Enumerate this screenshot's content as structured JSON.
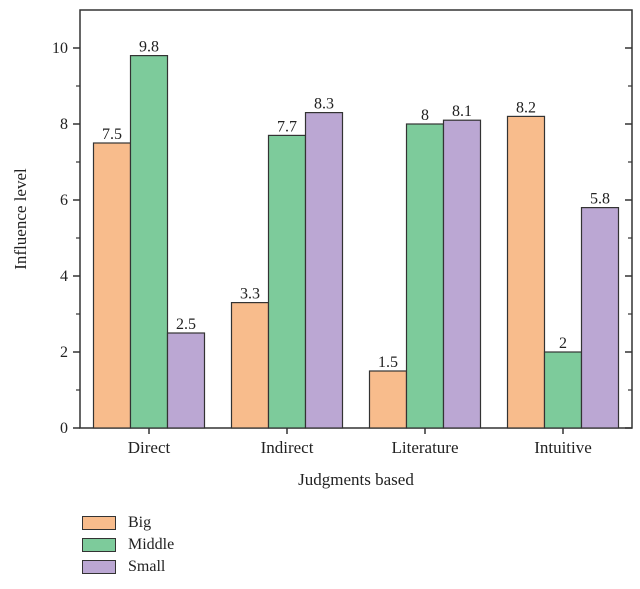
{
  "chart_data": {
    "type": "bar",
    "title": "",
    "xlabel": "Judgments based",
    "ylabel": "Influence level",
    "ylim": [
      0,
      11
    ],
    "yticks": [
      0,
      2,
      4,
      6,
      8,
      10
    ],
    "categories": [
      "Direct",
      "Indirect",
      "Literature",
      "Intuitive"
    ],
    "series": [
      {
        "name": "Big",
        "values": [
          7.5,
          3.3,
          1.5,
          8.2
        ],
        "labels": [
          "7.5",
          "3.3",
          "1.5",
          "8.2"
        ],
        "color": "#f8bc8c"
      },
      {
        "name": "Middle",
        "values": [
          9.8,
          7.7,
          8,
          2
        ],
        "labels": [
          "9.8",
          "7.7",
          "8",
          "2"
        ],
        "color": "#7dcb9b"
      },
      {
        "name": "Small",
        "values": [
          2.5,
          8.3,
          8.1,
          5.8
        ],
        "labels": [
          "2.5",
          "8.3",
          "8.1",
          "5.8"
        ],
        "color": "#bba7d3"
      }
    ],
    "grid": false,
    "legend_position": "bottom-left"
  },
  "legend": {
    "items": [
      {
        "label": "Big",
        "color": "#f8bc8c"
      },
      {
        "label": "Middle",
        "color": "#7dcb9b"
      },
      {
        "label": "Small",
        "color": "#bba7d3"
      }
    ]
  }
}
